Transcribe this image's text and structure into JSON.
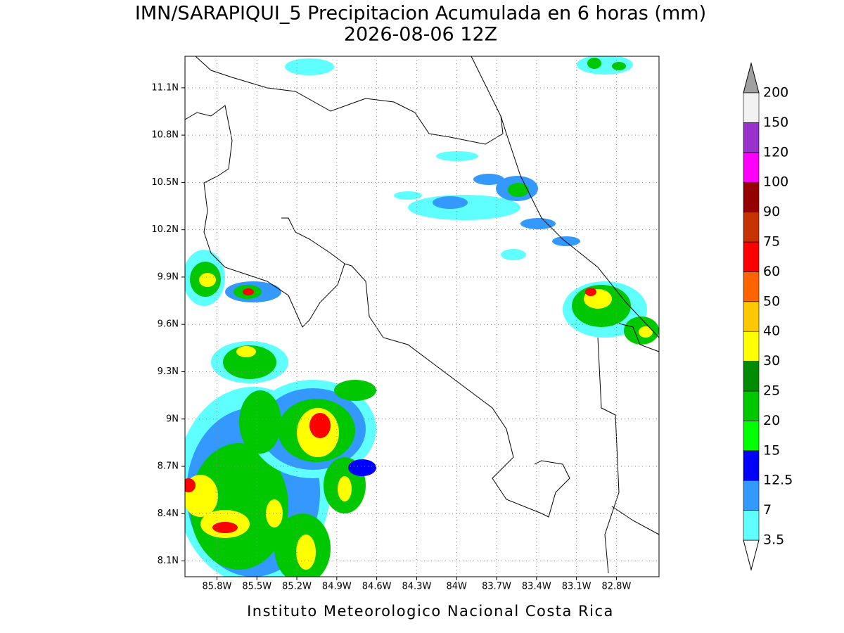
{
  "map": {
    "title": "IMN/SARAPIQUI_5 Precipitacion Acumulada en 6 horas (mm)",
    "subtitle": "2026-08-06 12Z",
    "footer": "Instituto Meteorologico Nacional Costa Rica",
    "xlim": [
      -86.04,
      -82.48
    ],
    "ylim": [
      8.0,
      11.3
    ],
    "xticks": [
      {
        "value": -85.8,
        "label": "85.8W"
      },
      {
        "value": -85.5,
        "label": "85.5W"
      },
      {
        "value": -85.2,
        "label": "85.2W"
      },
      {
        "value": -84.9,
        "label": "84.9W"
      },
      {
        "value": -84.6,
        "label": "84.6W"
      },
      {
        "value": -84.3,
        "label": "84.3W"
      },
      {
        "value": -84.0,
        "label": "84W"
      },
      {
        "value": -83.7,
        "label": "83.7W"
      },
      {
        "value": -83.4,
        "label": "83.4W"
      },
      {
        "value": -83.1,
        "label": "83.1W"
      },
      {
        "value": -82.8,
        "label": "82.8W"
      }
    ],
    "yticks": [
      {
        "value": 11.1,
        "label": "11.1N"
      },
      {
        "value": 10.8,
        "label": "10.8N"
      },
      {
        "value": 10.5,
        "label": "10.5N"
      },
      {
        "value": 10.2,
        "label": "10.2N"
      },
      {
        "value": 9.9,
        "label": "9.9N"
      },
      {
        "value": 9.6,
        "label": "9.6N"
      },
      {
        "value": 9.3,
        "label": "9.3N"
      },
      {
        "value": 9.0,
        "label": "9N"
      },
      {
        "value": 8.7,
        "label": "8.7N"
      },
      {
        "value": 8.4,
        "label": "8.4N"
      },
      {
        "value": 8.1,
        "label": "8.1N"
      }
    ],
    "grid": true,
    "legend": {
      "levels": [
        3.5,
        7,
        12.5,
        15,
        20,
        25,
        30,
        40,
        50,
        60,
        75,
        90,
        100,
        120,
        150,
        200
      ],
      "colors": [
        "#5fffff",
        "#3399ff",
        "#0000ff",
        "#00ff00",
        "#00c800",
        "#008c00",
        "#ffff00",
        "#ffc800",
        "#ff6400",
        "#ff0000",
        "#c83200",
        "#960000",
        "#ff00ff",
        "#9932cc",
        "#f2f2f2"
      ],
      "under_color": "#ffffff",
      "over_color": "#a0a0a0"
    }
  }
}
